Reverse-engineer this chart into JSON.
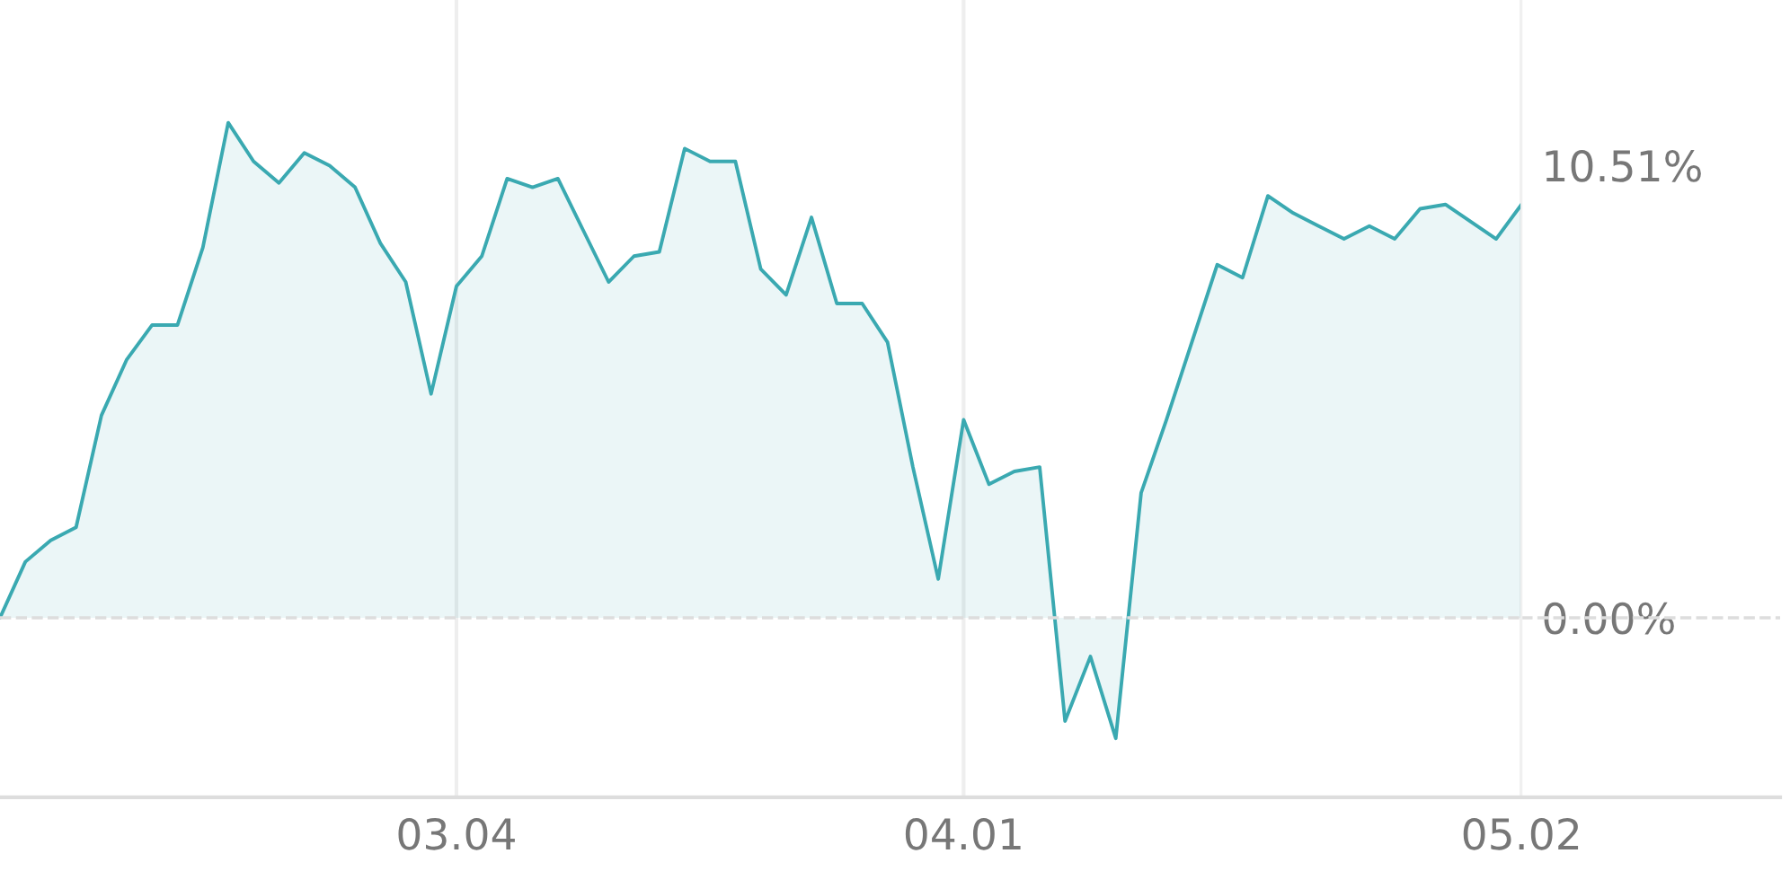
{
  "chart_data": {
    "type": "area",
    "categories": [
      null,
      null,
      null,
      null,
      null,
      null,
      null,
      null,
      null,
      null,
      null,
      null,
      null,
      null,
      null,
      null,
      null,
      null,
      "03.04",
      null,
      null,
      null,
      null,
      null,
      null,
      null,
      null,
      null,
      null,
      null,
      null,
      null,
      null,
      null,
      null,
      null,
      null,
      null,
      "04.01",
      null,
      null,
      null,
      null,
      null,
      null,
      null,
      null,
      null,
      null,
      null,
      null,
      null,
      null,
      null,
      null,
      null,
      null,
      null,
      null,
      null,
      "05.02"
    ],
    "series": [
      {
        "color": "#3aa9b1",
        "values": [
          0.0,
          1.3,
          1.8,
          2.1,
          4.7,
          6.0,
          6.8,
          6.8,
          8.6,
          11.5,
          10.6,
          10.1,
          10.8,
          10.5,
          10.0,
          8.7,
          7.8,
          5.2,
          7.7,
          8.4,
          10.2,
          10.0,
          10.2,
          9.0,
          7.8,
          8.4,
          8.5,
          10.9,
          10.6,
          10.6,
          8.1,
          7.5,
          9.3,
          7.3,
          7.3,
          6.4,
          3.5,
          0.9,
          4.6,
          3.1,
          3.4,
          3.5,
          -2.4,
          -0.9,
          -2.8,
          2.9,
          4.6,
          6.4,
          8.2,
          7.9,
          9.8,
          9.4,
          9.1,
          8.8,
          9.1,
          8.8,
          9.5,
          9.6,
          9.2,
          8.8,
          9.6
        ]
      }
    ],
    "ylim": [
      -4.17,
      14.35
    ],
    "yticks": [
      {
        "value": 0,
        "label": "0.00%"
      },
      {
        "value": 10.51,
        "label": "10.51%"
      }
    ],
    "ref_lines": [
      {
        "axis": "y",
        "value": 0,
        "color": "#dddddd",
        "line_style": "dashed"
      }
    ],
    "grid": "x"
  }
}
